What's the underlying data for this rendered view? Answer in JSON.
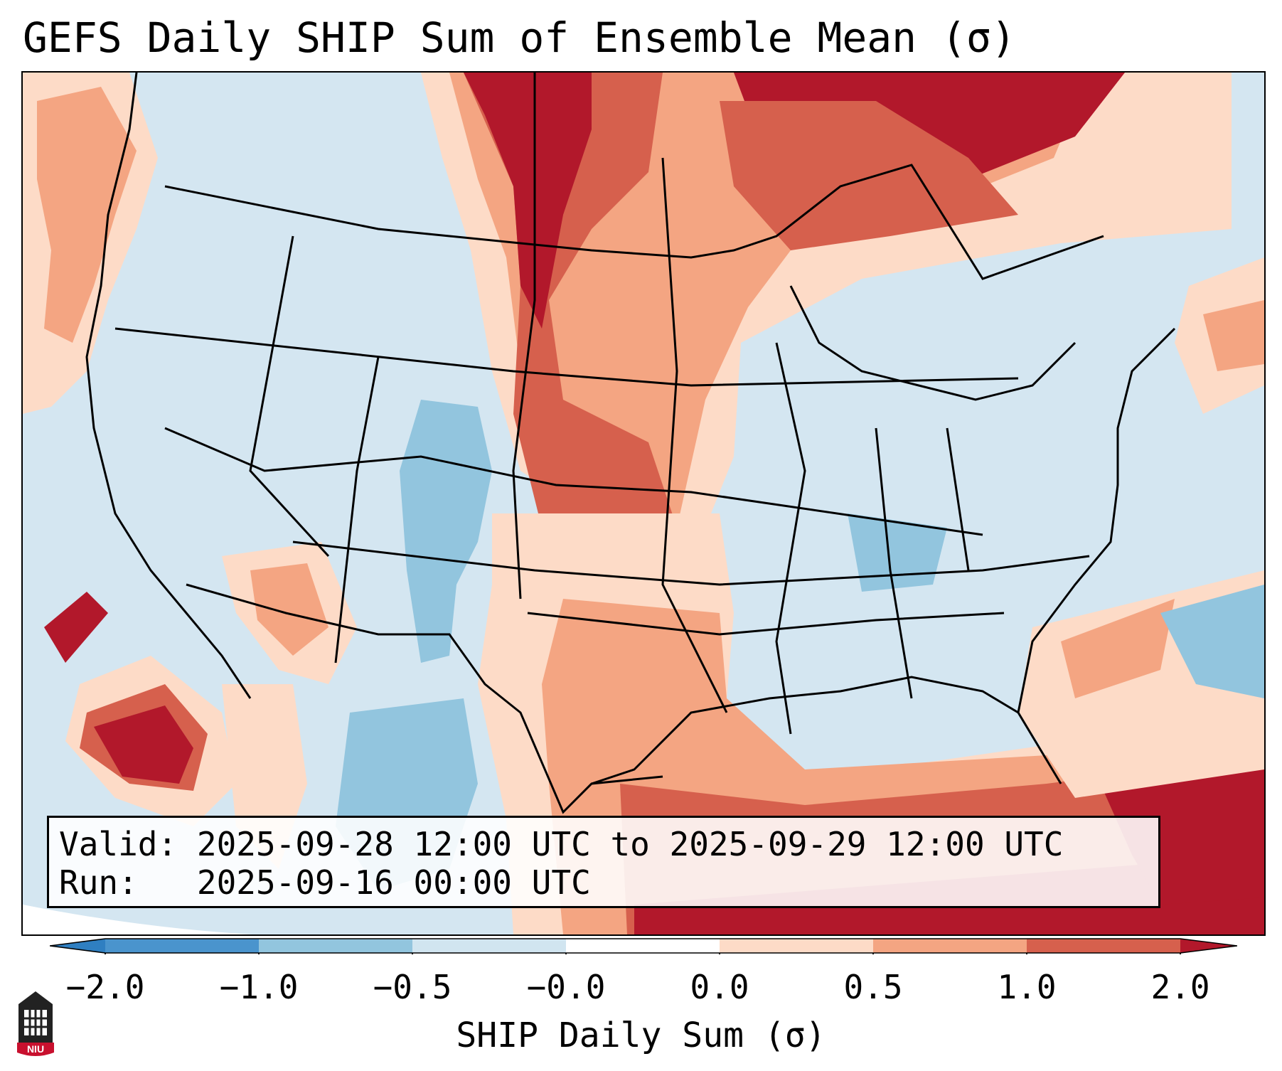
{
  "title": "GEFS Daily SHIP Sum of Ensemble Mean (σ)",
  "info": {
    "valid_label": "Valid:",
    "valid_value": "2025-09-28 12:00 UTC to 2025-09-29 12:00 UTC",
    "run_label": "Run:",
    "run_value": "2025-09-16 00:00 UTC"
  },
  "colorbar": {
    "label": "SHIP Daily Sum (σ)",
    "ticks": [
      "−2.0",
      "−1.0",
      "−0.5",
      "−0.0",
      "0.0",
      "0.5",
      "1.0",
      "2.0"
    ],
    "colors": {
      "lt_neg2": "#2f7fc1",
      "neg2_neg1": "#4a94cd",
      "neg1_neg05": "#92c5de",
      "neg05_0": "#d1e5f0",
      "zero": "#ffffff",
      "pos0_05": "#fddbc7",
      "pos05_1": "#f4a582",
      "pos1_2": "#d6604d",
      "gt_2": "#b2182b"
    }
  },
  "logo": {
    "text": "NIU"
  }
}
